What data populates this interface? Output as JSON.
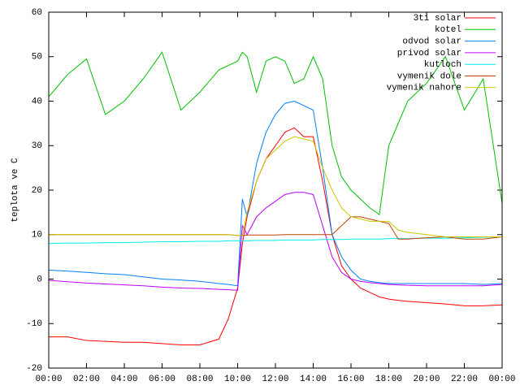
{
  "chart_data": {
    "type": "line",
    "ylabel": "teplota ve C",
    "x": [
      0,
      1,
      2,
      3,
      4,
      5,
      6,
      7,
      8,
      9,
      9.5,
      10,
      10.25,
      10.5,
      11,
      11.5,
      12,
      12.5,
      13,
      13.5,
      14,
      14.5,
      15,
      15.5,
      16,
      16.5,
      17,
      17.5,
      18,
      18.5,
      19,
      20,
      21,
      22,
      23,
      24
    ],
    "xlim": [
      0,
      24
    ],
    "xticks": [
      {
        "value": 0,
        "label": "00:00"
      },
      {
        "value": 2,
        "label": "02:00"
      },
      {
        "value": 4,
        "label": "04:00"
      },
      {
        "value": 6,
        "label": "06:00"
      },
      {
        "value": 8,
        "label": "08:00"
      },
      {
        "value": 10,
        "label": "10:00"
      },
      {
        "value": 12,
        "label": "12:00"
      },
      {
        "value": 14,
        "label": "14:00"
      },
      {
        "value": 16,
        "label": "16:00"
      },
      {
        "value": 18,
        "label": "18:00"
      },
      {
        "value": 20,
        "label": "20:00"
      },
      {
        "value": 22,
        "label": "22:00"
      },
      {
        "value": 24,
        "label": "00:00"
      }
    ],
    "ylim": [
      -20,
      60
    ],
    "yticks": [
      -20,
      -10,
      0,
      10,
      20,
      30,
      40,
      50,
      60
    ],
    "legend": "top-right",
    "series": [
      {
        "name": "3ti solar",
        "color": "#ff0000",
        "values": [
          -13,
          -13,
          -13.8,
          -14,
          -14.2,
          -14.2,
          -14.5,
          -14.8,
          -14.8,
          -13.5,
          -9,
          -2,
          8,
          14,
          22,
          27,
          30,
          33,
          34,
          32,
          32,
          22,
          10,
          3,
          0,
          -2,
          -3,
          -4,
          -4.5,
          -4.8,
          -5,
          -5.3,
          -5.6,
          -6,
          -6,
          -5.8
        ]
      },
      {
        "name": "kotel",
        "color": "#00c000",
        "values": [
          41,
          46,
          49.5,
          37,
          40,
          45,
          51,
          38,
          42,
          47,
          48,
          49,
          51,
          50,
          42,
          49,
          50,
          49,
          44,
          45,
          50,
          45,
          30,
          23,
          20,
          18,
          16,
          14.5,
          30,
          35,
          40,
          44,
          50,
          38,
          45,
          17
        ]
      },
      {
        "name": "odvod solar",
        "color": "#0080ff",
        "values": [
          2,
          1.8,
          1.5,
          1.2,
          1,
          0.5,
          0,
          -0.2,
          -0.5,
          -1,
          -1.2,
          -1.5,
          18,
          14,
          26,
          33,
          37,
          39.5,
          40,
          39,
          38,
          25,
          10,
          5,
          2,
          0,
          -0.5,
          -0.8,
          -1,
          -1,
          -1,
          -1,
          -1,
          -1,
          -1.2,
          -1
        ]
      },
      {
        "name": "privod solar",
        "color": "#c000ff",
        "values": [
          -0.3,
          -0.6,
          -0.9,
          -1.1,
          -1.3,
          -1.5,
          -1.8,
          -2,
          -2.1,
          -2.3,
          -2.4,
          -2.5,
          12,
          10,
          14,
          16,
          17.5,
          19,
          19.5,
          19.5,
          19,
          12,
          5,
          1.5,
          0,
          -0.5,
          -0.8,
          -1,
          -1.2,
          -1.3,
          -1.4,
          -1.5,
          -1.5,
          -1.5,
          -1.5,
          -1.2
        ]
      },
      {
        "name": "kutloch",
        "color": "#00eeee",
        "values": [
          8,
          8.1,
          8.1,
          8.2,
          8.2,
          8.3,
          8.4,
          8.4,
          8.5,
          8.5,
          8.6,
          8.6,
          8.6,
          8.6,
          8.7,
          8.7,
          8.7,
          8.8,
          8.8,
          8.8,
          8.8,
          8.9,
          8.9,
          8.9,
          9,
          9,
          9,
          9,
          9.1,
          9.1,
          9.1,
          9.2,
          9.2,
          9.3,
          9.4,
          9.5
        ]
      },
      {
        "name": "vymenik dole",
        "color": "#c04000",
        "values": [
          10,
          10,
          10,
          10,
          10,
          10,
          10,
          10,
          10,
          10,
          10,
          9.8,
          9.8,
          9.9,
          9.9,
          9.9,
          9.9,
          10,
          10,
          10,
          10,
          10,
          10,
          12,
          14,
          14,
          13.5,
          13,
          12.5,
          9,
          9,
          9.3,
          9.5,
          9,
          9,
          9.5
        ]
      },
      {
        "name": "vymenik nahore",
        "color": "#c8c800",
        "values": [
          10,
          10,
          10,
          10,
          10,
          10,
          10,
          10,
          10,
          10,
          10,
          9.8,
          9.8,
          15,
          22,
          27,
          29,
          31,
          32,
          31.5,
          31,
          25,
          20,
          16,
          14,
          13.5,
          13,
          13,
          13,
          11,
          10.5,
          10,
          9.5,
          9.5,
          9.5,
          9.5
        ]
      }
    ]
  }
}
